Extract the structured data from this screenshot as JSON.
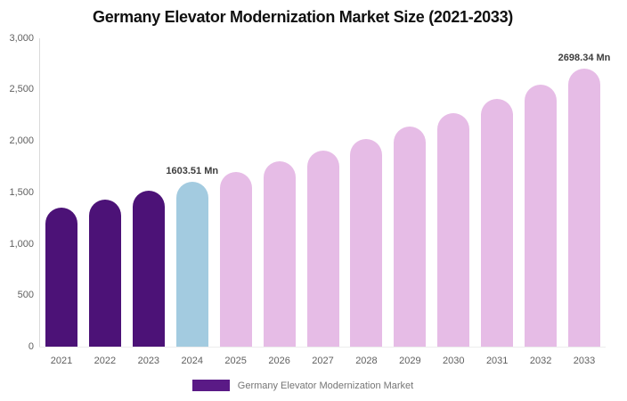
{
  "title": "Germany Elevator Modernization Market Size (2021-2033)",
  "legend": {
    "label": "Germany Elevator Modernization Market",
    "swatch_color": "#5a1a86"
  },
  "y_axis": {
    "tick_labels": [
      "3,000",
      "2,500",
      "2,000",
      "1,500",
      "1,000",
      "500",
      "0"
    ]
  },
  "chart_data": {
    "type": "bar",
    "title": "Germany Elevator Modernization Market Size (2021-2033)",
    "series_name": "Germany Elevator Modernization Market",
    "unit": "Mn",
    "categories": [
      "2021",
      "2022",
      "2023",
      "2024",
      "2025",
      "2026",
      "2027",
      "2028",
      "2029",
      "2030",
      "2031",
      "2032",
      "2033"
    ],
    "values": [
      1350,
      1430,
      1513,
      1603.51,
      1699,
      1800,
      1907,
      2021,
      2141,
      2268,
      2403,
      2546,
      2698.34
    ],
    "segments": [
      "historical",
      "historical",
      "historical",
      "base",
      "forecast",
      "forecast",
      "forecast",
      "forecast",
      "forecast",
      "forecast",
      "forecast",
      "forecast",
      "forecast"
    ],
    "colors": {
      "historical": "#4c1277",
      "base": "#a3cbe0",
      "forecast": "#e6bce6"
    },
    "data_labels": {
      "2024": "1603.51 Mn",
      "2033": "2698.34 Mn"
    },
    "xlabel": "",
    "ylabel": "",
    "ylim": [
      0,
      3000
    ],
    "grid": false,
    "legend_position": "bottom"
  }
}
